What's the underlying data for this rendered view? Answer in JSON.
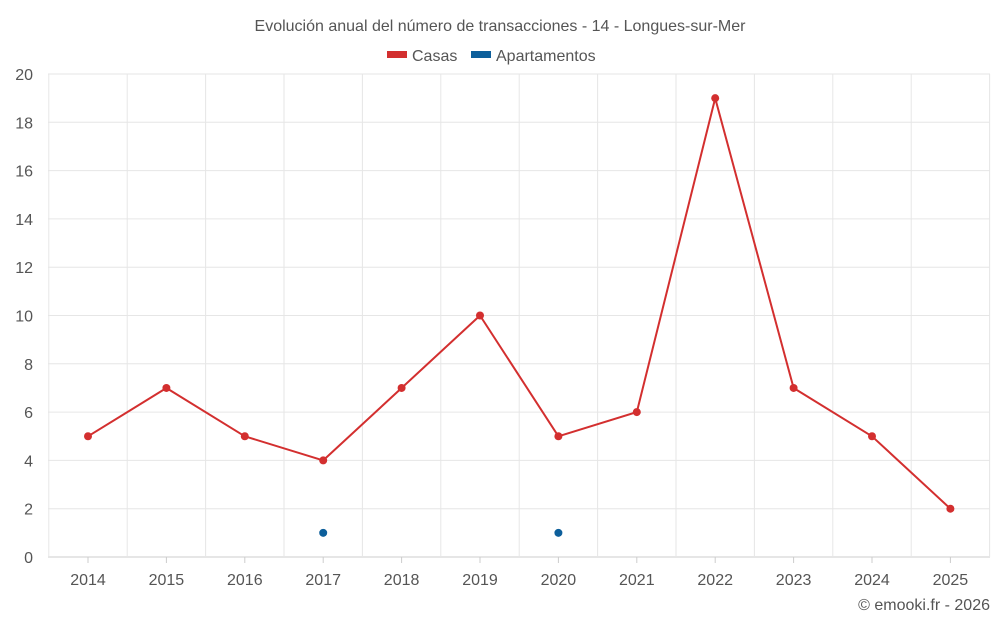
{
  "chart_data": {
    "type": "line",
    "title": "Evolución anual del número de transacciones - 14 - Longues-sur-Mer",
    "xlabel": "",
    "ylabel": "",
    "categories": [
      "2014",
      "2015",
      "2016",
      "2017",
      "2018",
      "2019",
      "2020",
      "2021",
      "2022",
      "2023",
      "2024",
      "2025"
    ],
    "ylim": [
      0,
      20
    ],
    "yticks": [
      0,
      2,
      4,
      6,
      8,
      10,
      12,
      14,
      16,
      18,
      20
    ],
    "grid": true,
    "legend_position": "top-center",
    "series": [
      {
        "name": "Casas",
        "color": "#d32f2f",
        "values": [
          5,
          7,
          5,
          4,
          7,
          10,
          5,
          6,
          19,
          7,
          5,
          2
        ]
      },
      {
        "name": "Apartamentos",
        "color": "#0d5f9b",
        "values": [
          null,
          null,
          null,
          1,
          null,
          null,
          1,
          null,
          null,
          null,
          null,
          null
        ]
      }
    ]
  },
  "credit": "© emooki.fr - 2026"
}
